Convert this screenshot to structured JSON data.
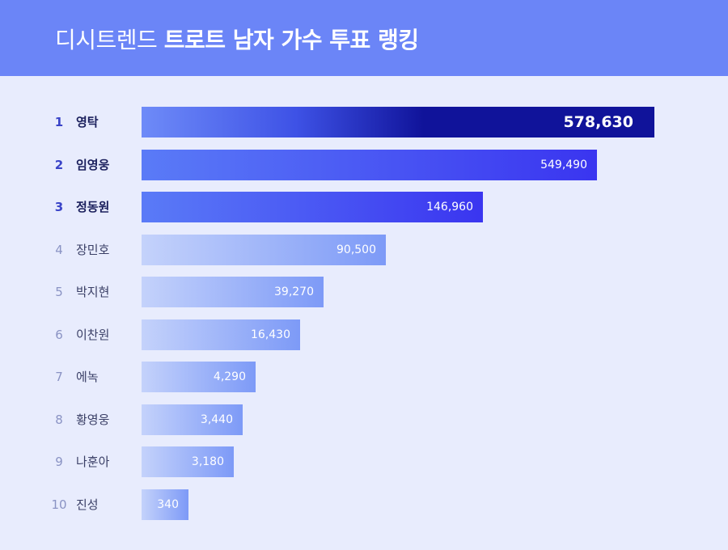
{
  "header": {
    "title_light": "디시트렌드",
    "title_bold": "트로트 남자 가수 투표 랭킹"
  },
  "colors": {
    "header_bg": "#6b85f7",
    "page_bg": "#e8ecfd",
    "bar_first_start": "#6e8bf8",
    "bar_first_end": "#10139a",
    "bar_top_start": "#5a7bf7",
    "bar_top_end": "#3a35f0",
    "bar_rest_start": "#c4d2fb",
    "bar_rest_end": "#7d9af7"
  },
  "chart_data": {
    "type": "bar",
    "orientation": "horizontal",
    "title": "디시트렌드 트로트 남자 가수 투표 랭킹",
    "ranks": [
      "1",
      "2",
      "3",
      "4",
      "5",
      "6",
      "7",
      "8",
      "9",
      "10"
    ],
    "categories": [
      "영탁",
      "임영웅",
      "정동원",
      "장민호",
      "박지현",
      "이찬원",
      "에녹",
      "황영웅",
      "나훈아",
      "진성"
    ],
    "values": [
      578630,
      549490,
      146960,
      90500,
      39270,
      16430,
      4290,
      3440,
      3180,
      340
    ],
    "value_labels": [
      "578,630",
      "549,490",
      "146,960",
      "90,500",
      "39,270",
      "16,430",
      "4,290",
      "3,440",
      "3,180",
      "340"
    ],
    "grid": false,
    "legend": "none"
  }
}
